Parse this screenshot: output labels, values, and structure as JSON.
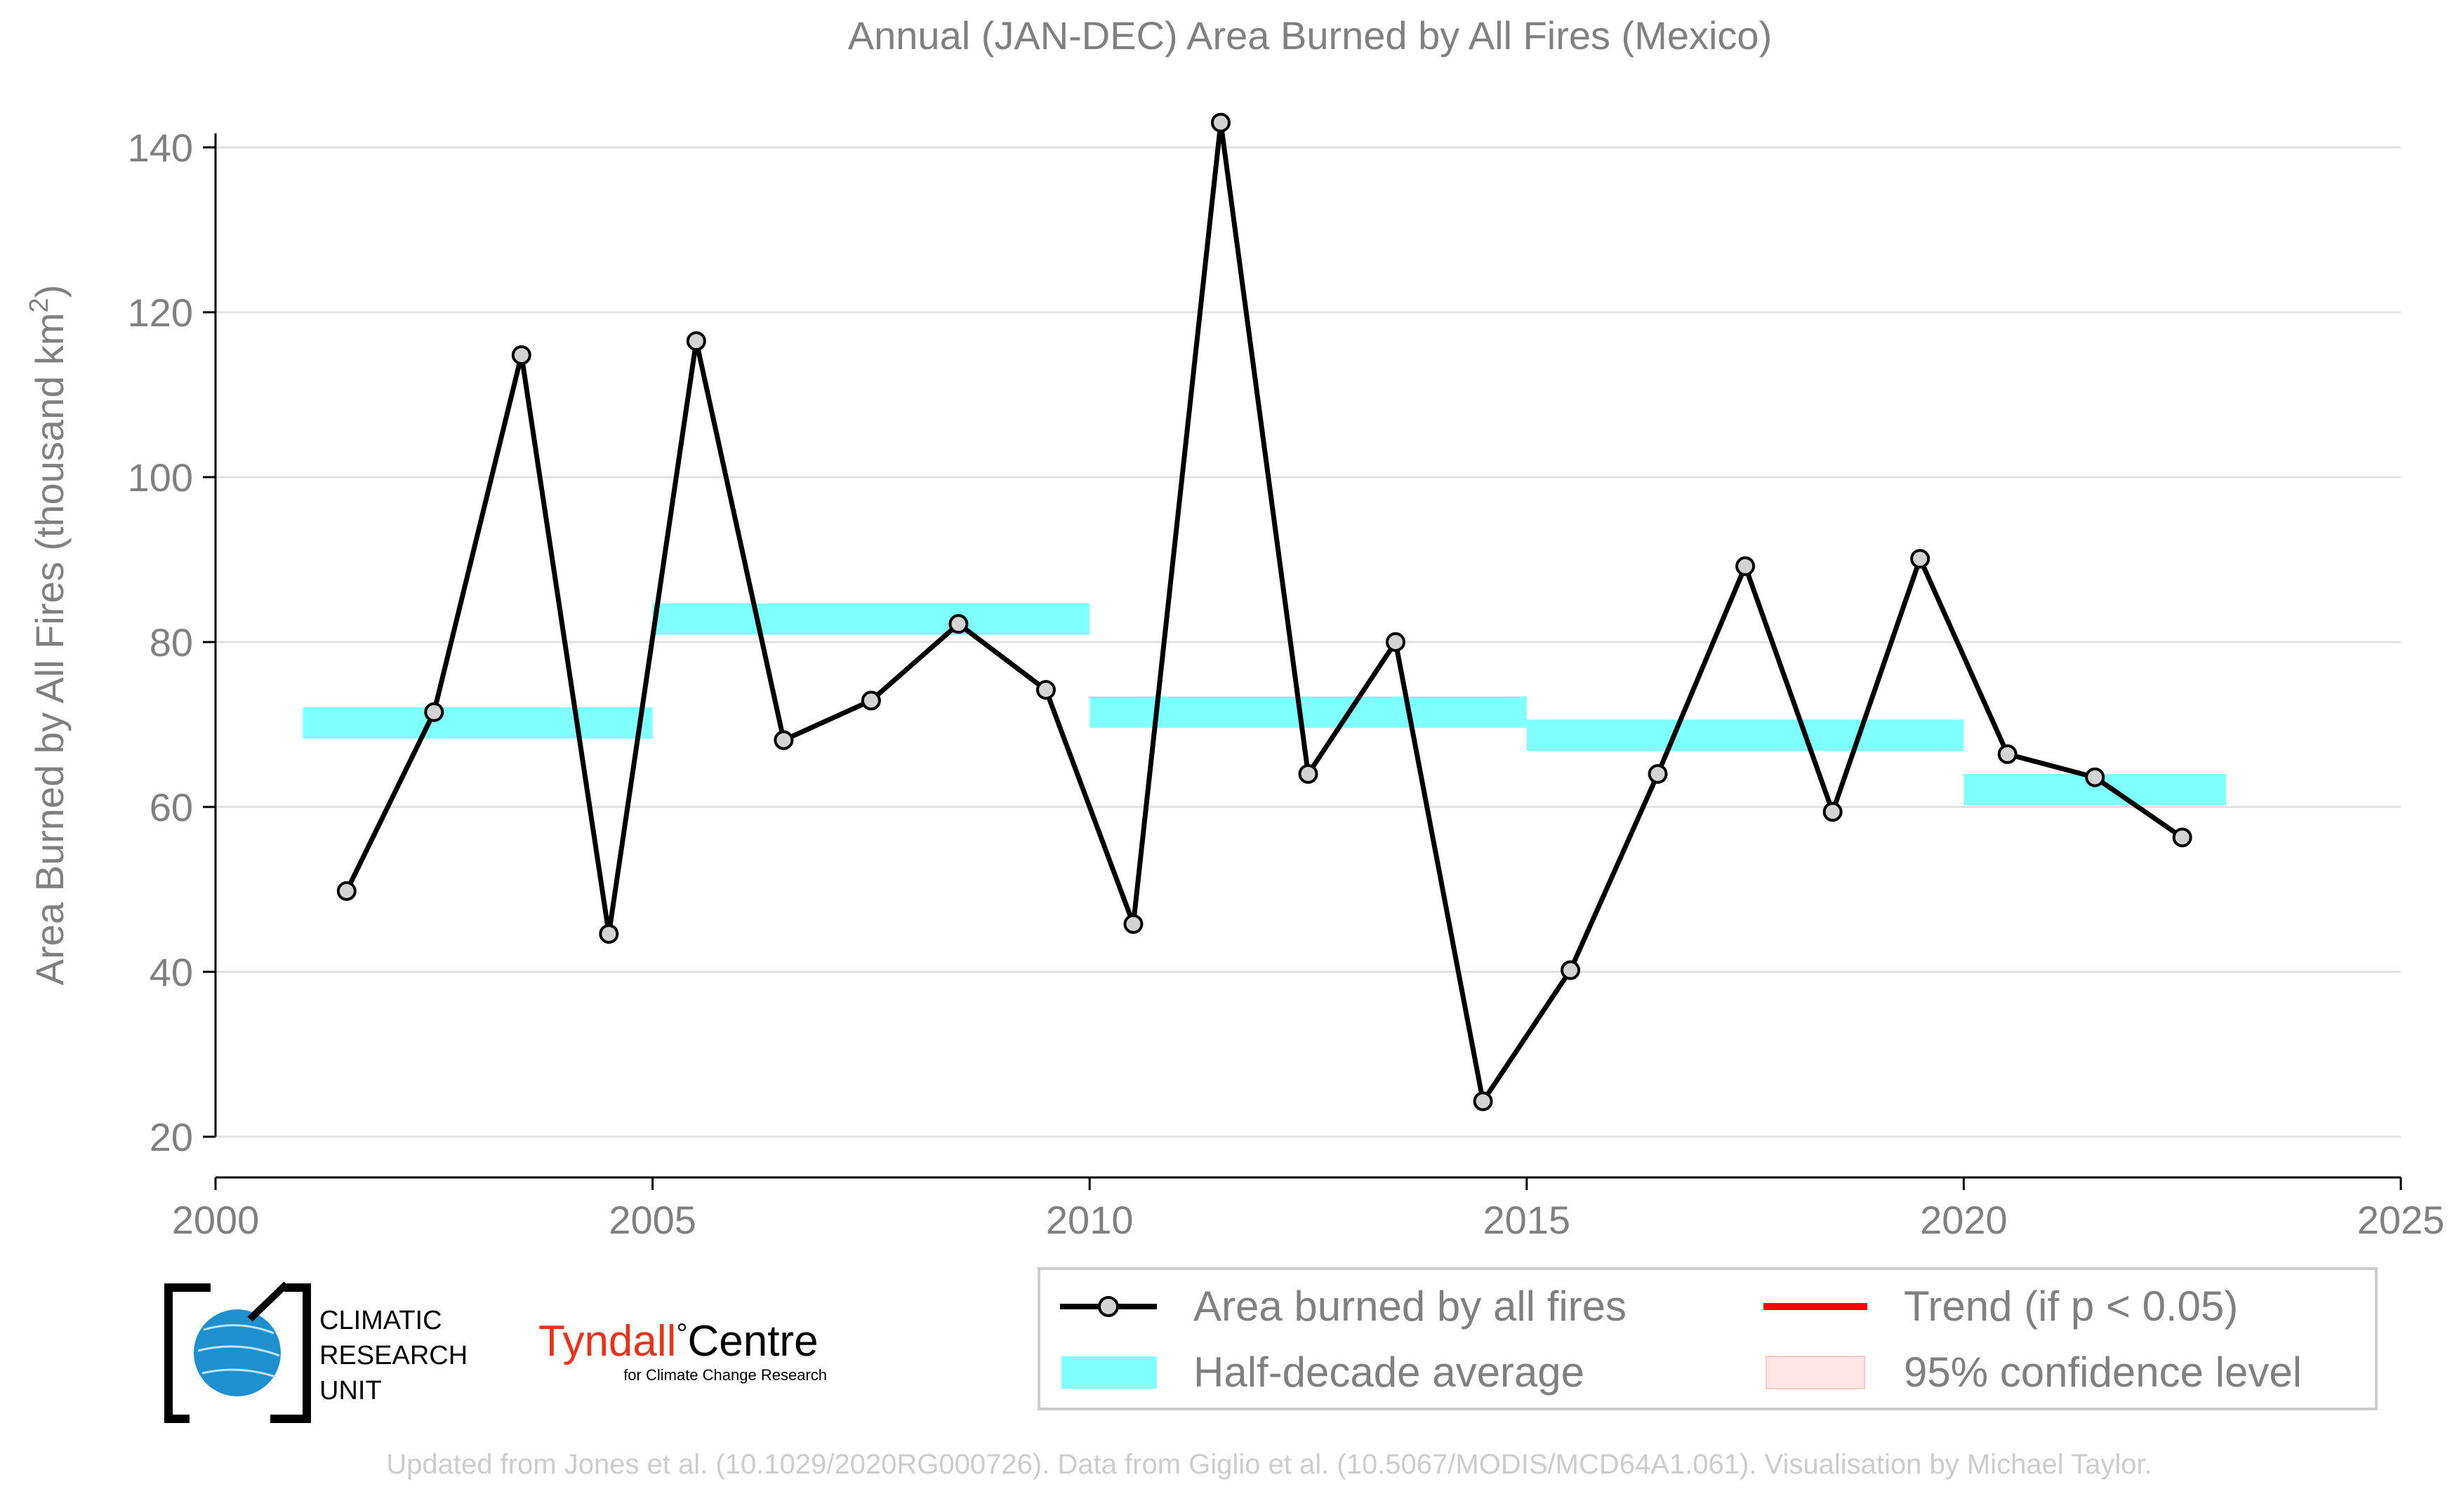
{
  "chart_data": {
    "type": "line",
    "title": "Annual (JAN-DEC) Area Burned by All Fires (Mexico)",
    "xlabel": "",
    "ylabel": "Area Burned by All Fires (thousand km",
    "ylabel_sup": "2",
    "ylabel_close": ")",
    "xlim": [
      2000,
      2025
    ],
    "ylim": [
      20,
      143
    ],
    "x_ticks": [
      2000,
      2005,
      2010,
      2015,
      2020,
      2025
    ],
    "y_ticks": [
      20,
      40,
      60,
      80,
      100,
      120,
      140
    ],
    "grid": "horizontal",
    "series": [
      {
        "name": "Area burned by all fires",
        "color": "#000000",
        "x": [
          2001.5,
          2002.5,
          2003.5,
          2004.5,
          2005.5,
          2006.5,
          2007.5,
          2008.5,
          2009.5,
          2010.5,
          2011.5,
          2012.5,
          2013.5,
          2014.5,
          2015.5,
          2016.5,
          2017.5,
          2018.5,
          2019.5,
          2020.5,
          2021.5,
          2022.5
        ],
        "values": [
          49.8,
          71.5,
          114.8,
          44.6,
          116.5,
          68.1,
          72.9,
          82.2,
          74.2,
          45.8,
          143.0,
          64.0,
          80.0,
          24.3,
          40.2,
          64.0,
          89.2,
          59.4,
          90.1,
          66.4,
          63.6,
          56.3
        ]
      }
    ],
    "half_decade_average": {
      "name": "Half-decade average",
      "color": "#80ffff",
      "bands": [
        {
          "x0": 2001,
          "x1": 2005,
          "value": 70.2
        },
        {
          "x0": 2005,
          "x1": 2010,
          "value": 82.8
        },
        {
          "x0": 2010,
          "x1": 2015,
          "value": 71.5
        },
        {
          "x0": 2015,
          "x1": 2020,
          "value": 68.7
        },
        {
          "x0": 2020,
          "x1": 2023,
          "value": 62.1
        }
      ]
    },
    "legend": {
      "placement": "bottom-right",
      "items": [
        {
          "label": "Area burned by all fires",
          "kind": "line-marker",
          "color": "#000000"
        },
        {
          "label": "Trend (if p < 0.05)",
          "kind": "line",
          "color": "#ff0000"
        },
        {
          "label": "Half-decade average",
          "kind": "band",
          "color": "#80ffff"
        },
        {
          "label": "95% confidence level",
          "kind": "band",
          "color": "#ffe5e5"
        }
      ]
    }
  },
  "logos": {
    "cru_line1": "CLIMATIC",
    "cru_line2": "RESEARCH",
    "cru_line3": "UNIT",
    "tyndall_name": "Tyndall",
    "tyndall_degree": "°",
    "tyndall_centre": "Centre",
    "tyndall_sub": "for Climate Change Research"
  },
  "credit": "Updated from Jones et al. (10.1029/2020RG000726). Data from Giglio et al. (10.5067/MODIS/MCD64A1.061). Visualisation by Michael Taylor.",
  "colors": {
    "text": "#808080",
    "grid": "#e0e0e0",
    "marker_fill": "#d3d3d3",
    "tyndall_red": "#e8331c",
    "cru_blue": "#1e90d0"
  }
}
